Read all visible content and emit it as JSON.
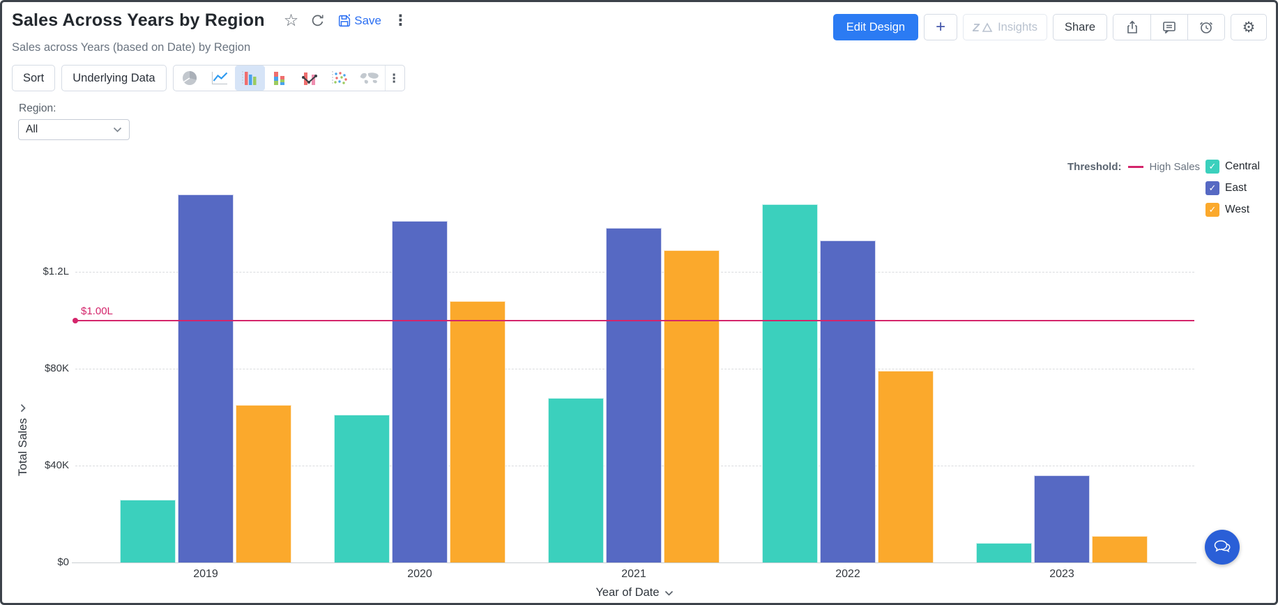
{
  "header": {
    "title": "Sales Across Years by Region",
    "subtitle": "Sales across Years (based on Date) by Region",
    "save_label": "Save",
    "title_icons": [
      "favorite-star-icon",
      "refresh-icon",
      "save-icon",
      "more-options-icon"
    ],
    "actions": {
      "edit_design": "Edit Design",
      "add": "+",
      "insights": "Insights",
      "share": "Share",
      "icon_buttons": [
        "export-icon",
        "comments-icon",
        "alerts-clock-icon",
        "settings-gear-icon"
      ]
    }
  },
  "toolbar": {
    "sort": "Sort",
    "underlying_data": "Underlying Data",
    "chart_types": [
      "pie",
      "line",
      "bar",
      "stacked-bar",
      "combination",
      "scatter",
      "map"
    ],
    "selected_chart_type": "bar"
  },
  "filter": {
    "label": "Region:",
    "value": "All"
  },
  "legend": {
    "threshold_label": "Threshold:",
    "series_checked": [
      true,
      true,
      true
    ]
  },
  "colors": {
    "accent_blue": "#2b7bf3",
    "threshold_pink": "#d4256b",
    "central_teal": "#3bd0bd",
    "east_indigo": "#5669c3",
    "west_orange": "#fba92c"
  },
  "chart_data": {
    "type": "bar",
    "title": "Sales Across Years by Region",
    "categories": [
      "2019",
      "2020",
      "2021",
      "2022",
      "2023"
    ],
    "series": [
      {
        "name": "Central",
        "color": "#3bd0bd",
        "values": [
          26000,
          61000,
          68000,
          148000,
          8000
        ]
      },
      {
        "name": "East",
        "color": "#5669c3",
        "values": [
          152000,
          141000,
          138000,
          133000,
          36000
        ]
      },
      {
        "name": "West",
        "color": "#fba92c",
        "values": [
          65000,
          108000,
          129000,
          79000,
          11000
        ]
      }
    ],
    "xlabel": "Year of Date",
    "ylabel": "Total Sales",
    "y_ticks": [
      "$0",
      "$40K",
      "$80K",
      "$1.2L"
    ],
    "y_tick_values": [
      0,
      40000,
      80000,
      120000
    ],
    "ylim": [
      0,
      160000
    ],
    "grid": "horizontal-dashed",
    "legend_position": "top-right",
    "threshold": {
      "value": 100000,
      "label": "$1.00L",
      "name": "High Sales",
      "color": "#d4256b"
    }
  }
}
